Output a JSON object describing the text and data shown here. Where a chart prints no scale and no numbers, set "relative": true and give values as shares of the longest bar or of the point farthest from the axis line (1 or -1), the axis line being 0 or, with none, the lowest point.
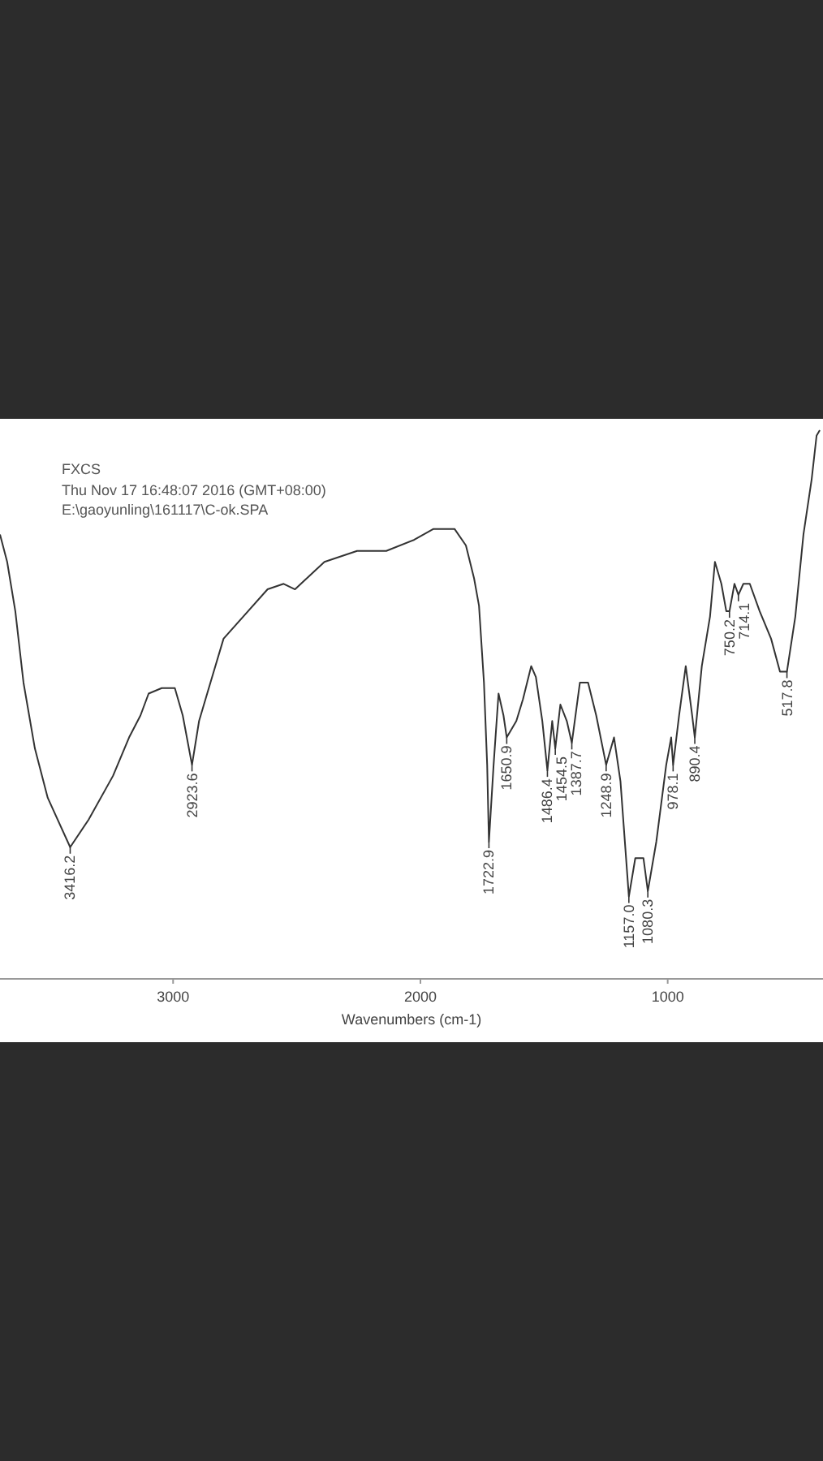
{
  "chart_data": {
    "type": "line",
    "title": "FXCS",
    "xlabel": "Wavenumbers (cm-1)",
    "relative": true,
    "xlim": [
      3700,
      372
    ],
    "xticks": [
      3000,
      2000,
      1000
    ],
    "grid": false,
    "marker": "none",
    "line_style": "solid",
    "x": [
      3700,
      3671,
      3638,
      3605,
      3559,
      3507,
      3416.2,
      3342,
      3243,
      3178,
      3132,
      3099,
      3046,
      2993,
      2961,
      2923.6,
      2895,
      2849,
      2796,
      2717,
      2618,
      2553,
      2507,
      2388,
      2256,
      2138,
      2026,
      1947,
      1862,
      1816,
      1783,
      1763,
      1743,
      1730,
      1722.9,
      1704,
      1684,
      1664,
      1650.9,
      1612,
      1585,
      1552,
      1533,
      1507,
      1486.4,
      1467,
      1454.5,
      1434,
      1408,
      1387.7,
      1355,
      1322,
      1289,
      1248.9,
      1217,
      1191,
      1157.0,
      1131,
      1098,
      1080.3,
      1046,
      1006,
      986,
      978.1,
      954,
      927,
      901,
      890.4,
      862,
      829,
      809,
      783,
      763,
      750.2,
      730,
      714.1,
      694,
      668,
      628,
      582,
      546,
      517.8,
      484,
      451,
      418,
      398,
      385
    ],
    "series": [
      {
        "color": "#333333",
        "values": [
          0.81,
          0.76,
          0.67,
          0.54,
          0.42,
          0.33,
          0.24,
          0.29,
          0.37,
          0.44,
          0.48,
          0.52,
          0.53,
          0.53,
          0.48,
          0.39,
          0.47,
          0.54,
          0.62,
          0.66,
          0.71,
          0.72,
          0.71,
          0.76,
          0.78,
          0.78,
          0.8,
          0.82,
          0.82,
          0.79,
          0.73,
          0.68,
          0.54,
          0.39,
          0.25,
          0.39,
          0.52,
          0.48,
          0.44,
          0.47,
          0.51,
          0.57,
          0.55,
          0.47,
          0.38,
          0.47,
          0.42,
          0.5,
          0.47,
          0.43,
          0.54,
          0.54,
          0.48,
          0.39,
          0.44,
          0.36,
          0.15,
          0.22,
          0.22,
          0.16,
          0.25,
          0.39,
          0.44,
          0.39,
          0.48,
          0.57,
          0.48,
          0.44,
          0.57,
          0.66,
          0.76,
          0.72,
          0.67,
          0.67,
          0.72,
          0.7,
          0.72,
          0.72,
          0.67,
          0.62,
          0.56,
          0.56,
          0.66,
          0.81,
          0.91,
          0.99,
          1.0
        ]
      }
    ],
    "annotations": [
      "Thu Nov 17 16:48:07 2016 (GMT+08:00)",
      "E:\\gaoyunling\\161117\\C-ok.SPA",
      {
        "text": "3416.2",
        "x": 3416.2,
        "y": 0.24
      },
      {
        "text": "2923.6",
        "x": 2923.6,
        "y": 0.39
      },
      {
        "text": "1722.9",
        "x": 1722.9,
        "y": 0.25
      },
      {
        "text": "1650.9",
        "x": 1650.9,
        "y": 0.44
      },
      {
        "text": "1486.4",
        "x": 1486.4,
        "y": 0.38
      },
      {
        "text": "1454.5",
        "x": 1454.5,
        "y": 0.42
      },
      {
        "text": "1387.7",
        "x": 1387.7,
        "y": 0.43
      },
      {
        "text": "1248.9",
        "x": 1248.9,
        "y": 0.39
      },
      {
        "text": "1157.0",
        "x": 1157.0,
        "y": 0.15
      },
      {
        "text": "1080.3",
        "x": 1080.3,
        "y": 0.16
      },
      {
        "text": "978.1",
        "x": 978.1,
        "y": 0.39
      },
      {
        "text": "890.4",
        "x": 890.4,
        "y": 0.44
      },
      {
        "text": "750.2",
        "x": 750.2,
        "y": 0.67
      },
      {
        "text": "714.1",
        "x": 714.1,
        "y": 0.7
      },
      {
        "text": "517.8",
        "x": 517.8,
        "y": 0.56
      }
    ]
  }
}
